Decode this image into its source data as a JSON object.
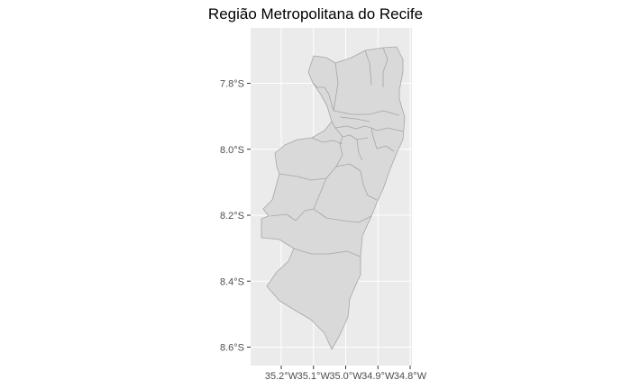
{
  "chart_data": {
    "type": "map",
    "title": "Região Metropolitana do Recife",
    "xlabel": "",
    "ylabel": "",
    "grid": true,
    "legend": "none",
    "x_ticks": [
      {
        "value": -35.2,
        "label": "35.2°W"
      },
      {
        "value": -35.1,
        "label": "35.1°W"
      },
      {
        "value": -35.0,
        "label": "35.0°W"
      },
      {
        "value": -34.9,
        "label": "34.9°W"
      },
      {
        "value": -34.8,
        "label": "34.8°W"
      }
    ],
    "y_ticks": [
      {
        "value": -7.8,
        "label": "7.8°S"
      },
      {
        "value": -8.0,
        "label": "8.0°S"
      },
      {
        "value": -8.2,
        "label": "8.2°S"
      },
      {
        "value": -8.4,
        "label": "8.4°S"
      },
      {
        "value": -8.6,
        "label": "8.6°S"
      }
    ],
    "colors": {
      "panel_background": "#ebebeb",
      "grid_major": "#ffffff",
      "region_fill": "#d9d9d9",
      "region_border": "#a6a6a6",
      "tick_mark": "#333333"
    }
  }
}
